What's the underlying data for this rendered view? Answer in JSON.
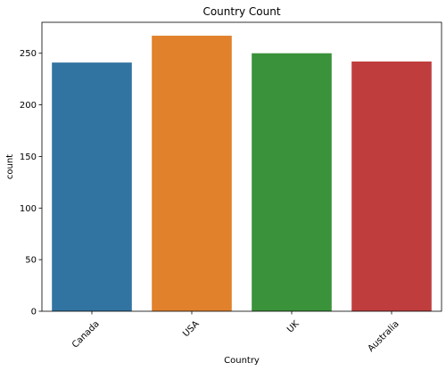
{
  "chart_data": {
    "type": "bar",
    "title": "Country Count",
    "xlabel": "Country",
    "ylabel": "count",
    "categories": [
      "Canada",
      "USA",
      "UK",
      "Australia"
    ],
    "values": [
      241,
      267,
      250,
      242
    ],
    "colors": [
      "#3274a1",
      "#e1812c",
      "#3a923a",
      "#c03d3e"
    ],
    "ylim": [
      0,
      280
    ],
    "yticks": [
      0,
      50,
      100,
      150,
      200,
      250
    ],
    "grid": false,
    "legend": "none",
    "xtick_rotation": "45"
  }
}
